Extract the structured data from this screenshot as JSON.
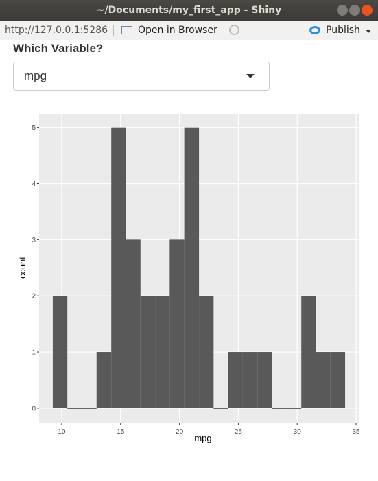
{
  "window": {
    "title": "~/Documents/my_first_app - Shiny"
  },
  "toolbar": {
    "url": "http://127.0.0.1:5286",
    "open_in_browser": "Open in Browser",
    "publish": "Publish"
  },
  "input": {
    "label": "Which Variable?",
    "selected": "mpg"
  },
  "chart_data": {
    "type": "histogram",
    "x_label": "mpg",
    "y_label": "count",
    "bins": [
      9.24,
      10.48,
      11.72,
      12.96,
      14.21,
      15.45,
      16.69,
      17.93,
      19.17,
      20.41,
      21.66,
      22.9,
      24.14,
      25.38,
      26.62,
      27.86,
      29.1,
      30.35,
      31.59,
      32.83,
      34.07
    ],
    "counts": [
      2,
      0,
      0,
      1,
      5,
      3,
      2,
      2,
      3,
      5,
      2,
      0,
      1,
      1,
      1,
      0,
      0,
      2,
      1,
      1
    ],
    "color": "#595959",
    "xlim": [
      8.08,
      35.29
    ],
    "ylim": [
      -0.27,
      5.24
    ],
    "xticks": [
      10,
      15,
      20,
      25,
      30,
      35
    ],
    "yticks": [
      0,
      1,
      2,
      3,
      4,
      5
    ],
    "grid": true
  }
}
